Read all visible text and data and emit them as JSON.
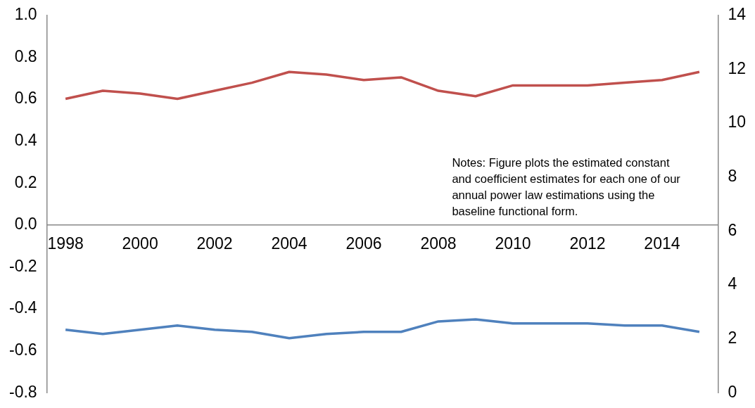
{
  "chart_data": {
    "type": "line",
    "categories": [
      "1998",
      null,
      "2000",
      null,
      "2002",
      null,
      "2004",
      null,
      "2006",
      null,
      "2008",
      null,
      "2010",
      null,
      "2012",
      null,
      "2014",
      null
    ],
    "series": [
      {
        "color": "#c0504d",
        "axis": "y2",
        "values": [
          10.9,
          11.2,
          11.1,
          10.9,
          11.2,
          11.5,
          11.9,
          11.8,
          11.6,
          11.7,
          11.2,
          11.0,
          11.4,
          11.4,
          11.4,
          11.5,
          11.6,
          11.9
        ]
      },
      {
        "color": "#4f81bd",
        "axis": "y",
        "values": [
          -0.5,
          -0.52,
          -0.5,
          -0.48,
          -0.5,
          -0.51,
          -0.54,
          -0.52,
          -0.51,
          -0.51,
          -0.46,
          -0.45,
          -0.47,
          -0.47,
          -0.47,
          -0.48,
          -0.48,
          -0.51
        ]
      }
    ],
    "ylim": [
      -0.8,
      1.0
    ],
    "yticks": [
      -0.8,
      -0.6,
      -0.4,
      -0.2,
      {
        "value": 0,
        "label": "0.0"
      },
      0.2,
      0.4,
      0.6,
      0.8,
      {
        "value": 1,
        "label": "1.0"
      }
    ],
    "y2lim": [
      0,
      14
    ],
    "y2ticks": [
      0,
      2,
      4,
      6,
      8,
      10,
      12,
      14
    ],
    "grid": false,
    "legend": false,
    "marker": "none",
    "line_style": "solid",
    "annotations": [
      "Notes: Figure plots the estimated constant and coefficient estimates for each one of our annual power law estimations using the baseline functional form."
    ]
  }
}
